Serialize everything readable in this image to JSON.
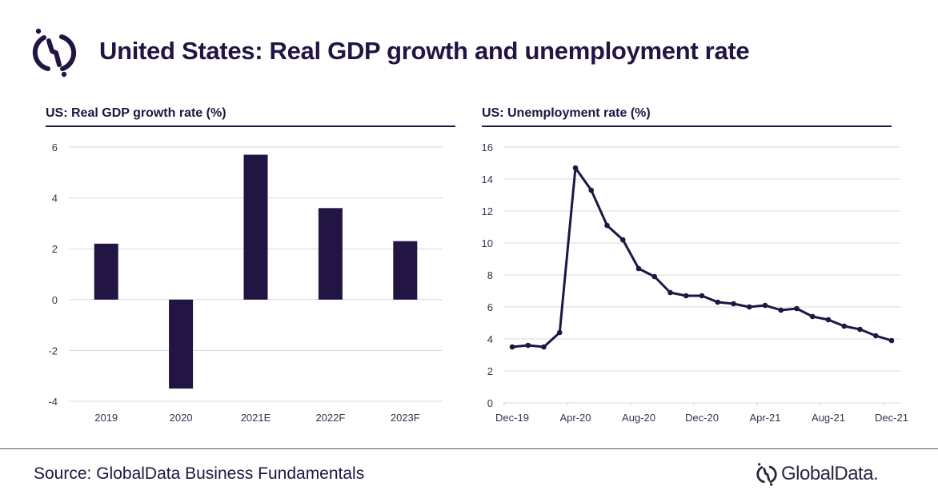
{
  "header": {
    "title": "United States: Real GDP growth and unemployment rate",
    "logo_icon": "globaldata-logo-icon"
  },
  "colors": {
    "primary": "#221443",
    "gridline": "#d9d9d9",
    "tick_text": "#3a3150"
  },
  "chart_data": [
    {
      "type": "bar",
      "title": "US: Real GDP growth rate (%)",
      "xlabel": "",
      "ylabel": "",
      "categories": [
        "2019",
        "2020",
        "2021E",
        "2022F",
        "2023F"
      ],
      "values": [
        2.2,
        -3.5,
        5.7,
        3.6,
        2.3
      ],
      "ylim": [
        -4,
        6
      ],
      "yticks": [
        6,
        4,
        2,
        0,
        -2,
        -4
      ],
      "grid": true,
      "legend": "none"
    },
    {
      "type": "line",
      "title": "US: Unemployment rate (%)",
      "xlabel": "",
      "ylabel": "",
      "x": [
        "Dec-19",
        "Jan-20",
        "Feb-20",
        "Mar-20",
        "Apr-20",
        "May-20",
        "Jun-20",
        "Jul-20",
        "Aug-20",
        "Sep-20",
        "Oct-20",
        "Nov-20",
        "Dec-20",
        "Jan-21",
        "Feb-21",
        "Mar-21",
        "Apr-21",
        "May-21",
        "Jun-21",
        "Jul-21",
        "Aug-21",
        "Sep-21",
        "Oct-21",
        "Nov-21",
        "Dec-21"
      ],
      "values": [
        3.5,
        3.6,
        3.5,
        4.4,
        14.7,
        13.3,
        11.1,
        10.2,
        8.4,
        7.9,
        6.9,
        6.7,
        6.7,
        6.3,
        6.2,
        6.0,
        6.1,
        5.8,
        5.9,
        5.4,
        5.2,
        4.8,
        4.6,
        4.2,
        3.9
      ],
      "xtick_labels": [
        "Dec-19",
        "Apr-20",
        "Aug-20",
        "Dec-20",
        "Apr-21",
        "Aug-21",
        "Dec-21"
      ],
      "ylim": [
        0,
        16
      ],
      "yticks": [
        16,
        14,
        12,
        10,
        8,
        6,
        4,
        2,
        0
      ],
      "grid": true,
      "markers": true,
      "legend": "none"
    }
  ],
  "footer": {
    "source": "Source: GlobalData Business Fundamentals",
    "brand": "GlobalData."
  }
}
